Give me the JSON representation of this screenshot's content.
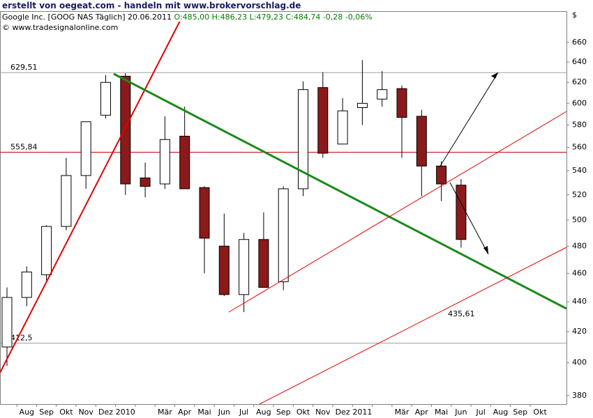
{
  "header": {
    "credit": "erstellt von oegeat.com - handeln mit www.brokervorschlag.de",
    "instrument": "Google Inc. [GOOG NAS  Täglich] 20.06.2011",
    "quote": "O:485,00 H:486,23 L:479,23 C:484,74 -0,28 -0,06%",
    "copyright": "© www.tradesignalonline.com"
  },
  "chart_data": {
    "type": "candlestick",
    "currency": "$",
    "log_scale": true,
    "up_color": "#ffffff",
    "down_color": "#8b1a1a",
    "categories": [
      null,
      "Aug",
      "Sep",
      "Okt",
      "Nov",
      "Dez",
      "2010",
      null,
      "Mär",
      "Apr",
      "Mai",
      "Jun",
      "Jul",
      "Aug",
      "Sep",
      "Okt",
      "Nov",
      "Dez",
      "2011",
      null,
      "Mär",
      "Apr",
      "Mai",
      "Jun",
      "Jul",
      "Aug",
      "Sep",
      "Okt"
    ],
    "open": [
      410,
      443,
      459,
      495,
      536,
      589,
      626,
      534,
      529,
      570,
      526,
      480,
      445,
      485,
      454,
      525,
      615,
      563,
      596,
      604,
      614,
      588,
      544,
      528,
      null,
      null,
      null,
      null
    ],
    "high": [
      450,
      465,
      496,
      551,
      583,
      627,
      629,
      547,
      588,
      597,
      527,
      505,
      490,
      506,
      527,
      621,
      630,
      605,
      642,
      631,
      617,
      594,
      548,
      533,
      null,
      null,
      null,
      null
    ],
    "low": [
      398,
      437,
      455,
      492,
      525,
      586,
      520,
      518,
      525,
      525,
      460,
      444,
      433,
      450,
      448,
      519,
      551,
      563,
      580,
      597,
      551,
      519,
      515,
      479,
      null,
      null,
      null,
      null
    ],
    "close": [
      443,
      461,
      495,
      536,
      583,
      620,
      529,
      527,
      567,
      525,
      486,
      445,
      485,
      450,
      525,
      613,
      555,
      593,
      600,
      613,
      587,
      544,
      529,
      485,
      null,
      null,
      null,
      null
    ],
    "ylim": [
      375,
      693
    ],
    "yticks": [
      380,
      400,
      420,
      440,
      460,
      480,
      500,
      520,
      540,
      560,
      580,
      600,
      620,
      640,
      660
    ],
    "levels": [
      {
        "value": 629.51,
        "label": "629,51",
        "color": "#a0a0a0"
      },
      {
        "value": 555.84,
        "label": "555,84",
        "color": "#cc0000"
      },
      {
        "value": 412.5,
        "label": "412,5",
        "color": "#a0a0a0"
      }
    ],
    "annotations": [
      {
        "text": "435,61",
        "color": "#cc0000"
      }
    ]
  }
}
